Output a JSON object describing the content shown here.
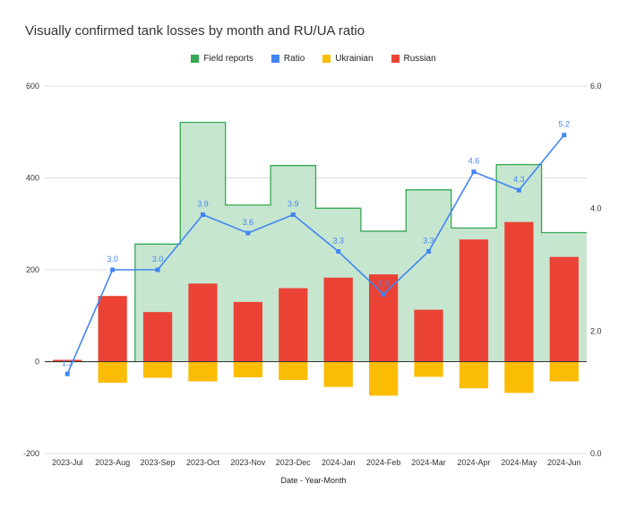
{
  "chart_data": {
    "type": "bar",
    "title": "Visually confirmed tank losses by month and RU/UA ratio",
    "xlabel": "Date - Year-Month",
    "categories": [
      "2023-Jul",
      "2023-Aug",
      "2023-Sep",
      "2023-Oct",
      "2023-Nov",
      "2023-Dec",
      "2024-Jan",
      "2024-Feb",
      "2024-Mar",
      "2024-Apr",
      "2024-May",
      "2024-Jun"
    ],
    "series": [
      {
        "name": "Field reports",
        "kind": "stepped-area",
        "axis": "left",
        "color": "#34a853",
        "values": [
          0,
          0,
          256,
          521,
          341,
          427,
          334,
          284,
          374,
          291,
          429,
          281
        ]
      },
      {
        "name": "Ratio",
        "kind": "line",
        "axis": "right",
        "color": "#4285f4",
        "values": [
          1.3,
          3.0,
          3.0,
          3.9,
          3.6,
          3.9,
          3.3,
          2.6,
          3.3,
          4.6,
          4.3,
          5.2
        ],
        "labels": [
          "1.3",
          "3.0",
          "3.0",
          "3.9",
          "3.6",
          "3.9",
          "3.3",
          "2.6",
          "3.3",
          "4.6",
          "4.3",
          "5.2"
        ]
      },
      {
        "name": "Ukrainian",
        "kind": "bar",
        "axis": "left",
        "color": "#fbbc04",
        "values": [
          3,
          -46,
          -35,
          -43,
          -34,
          -40,
          -55,
          -74,
          -33,
          -58,
          -68,
          -43
        ]
      },
      {
        "name": "Russian",
        "kind": "bar",
        "axis": "left",
        "color": "#ea4335",
        "values": [
          4,
          143,
          108,
          170,
          130,
          160,
          183,
          190,
          113,
          266,
          304,
          228
        ]
      }
    ],
    "left_axis": {
      "min": -200,
      "max": 600,
      "ticks": [
        -200,
        0,
        200,
        400,
        600
      ],
      "tick_labels": [
        "-200",
        "0",
        "200",
        "400",
        "600"
      ]
    },
    "right_axis": {
      "min": 0,
      "max": 6,
      "ticks": [
        0,
        2,
        4,
        6
      ],
      "tick_labels": [
        "0.0",
        "2.0",
        "4.0",
        "6.0"
      ]
    },
    "grid": true,
    "legend_position": "top"
  }
}
